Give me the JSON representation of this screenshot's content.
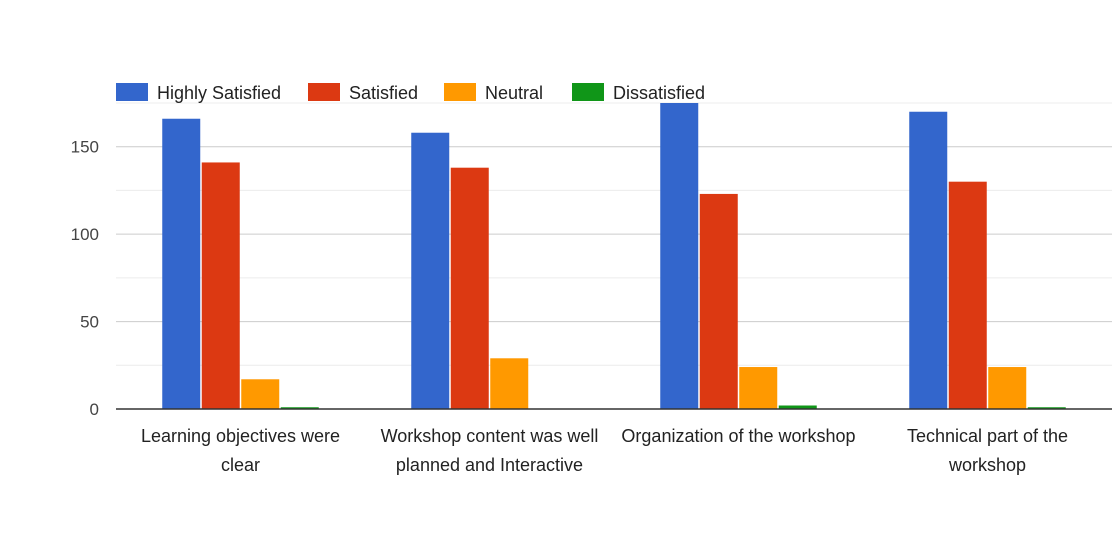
{
  "chart_data": {
    "type": "bar",
    "title": "",
    "xlabel": "",
    "ylabel": "",
    "categories": [
      [
        "Learning objectives were",
        "clear"
      ],
      [
        "Workshop content was well",
        "planned and Interactive"
      ],
      [
        "Organization of the workshop"
      ],
      [
        "Technical part of the",
        "workshop"
      ]
    ],
    "series": [
      {
        "name": "Highly Satisfied",
        "color": "#3366cc",
        "values": [
          166,
          158,
          175,
          170
        ]
      },
      {
        "name": "Satisfied",
        "color": "#dc3912",
        "values": [
          141,
          138,
          123,
          130
        ]
      },
      {
        "name": "Neutral",
        "color": "#ff9900",
        "values": [
          17,
          29,
          24,
          24
        ]
      },
      {
        "name": "Dissatisfied",
        "color": "#109618",
        "values": [
          1,
          0,
          2,
          1
        ]
      }
    ],
    "ylim": [
      0,
      175
    ],
    "yticks": [
      "0",
      "50",
      "100",
      "150"
    ],
    "grid": true,
    "minor_grid": true,
    "legend_position": "top-left"
  }
}
